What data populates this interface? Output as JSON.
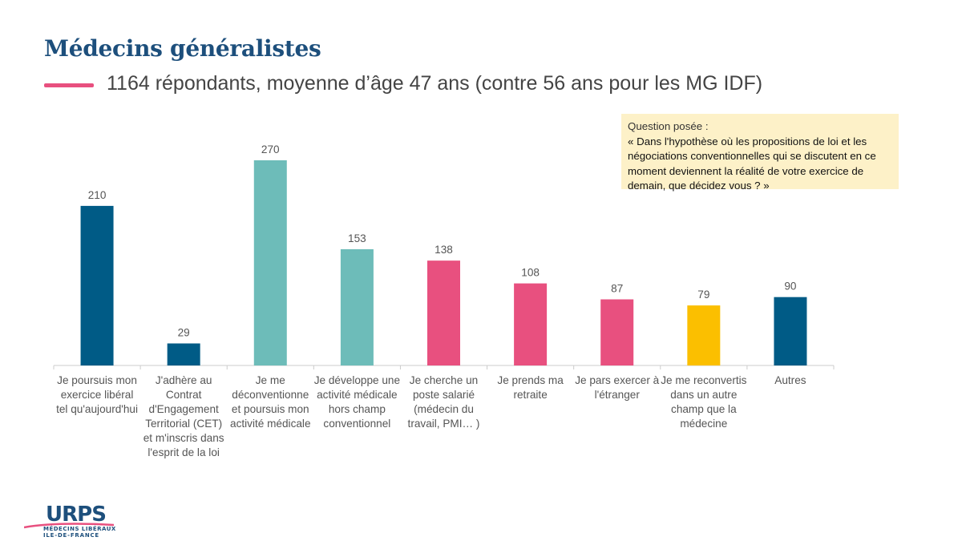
{
  "header": {
    "title": "Médecins généralistes",
    "subtitle": "1164 répondants, moyenne d’âge 47 ans (contre 56 ans pour les MG IDF)"
  },
  "question": {
    "label": "Question posée :",
    "text": "« Dans l'hypothèse où les propositions de loi et les négociations conventionnelles qui se discutent en ce moment deviennent la réalité de votre exercice de demain, que décidez vous ? »"
  },
  "logo": {
    "name": "URPS",
    "line1": "MÉDECINS LIBÉRAUX",
    "line2": "ILE-DE-FRANCE"
  },
  "colors": {
    "dark_blue": "#005b86",
    "teal": "#6dbcb9",
    "pink": "#e8507f",
    "yellow": "#fbbf00",
    "title": "#1d4f7c",
    "question_bg": "#fdf1c8"
  },
  "chart_data": {
    "type": "bar",
    "title": "",
    "xlabel": "",
    "ylabel": "",
    "ylim": [
      0,
      270
    ],
    "grid": false,
    "categories": [
      "Je poursuis mon exercice libéral tel qu'aujourd'hui",
      "J'adhère au Contrat d'Engagement Territorial (CET) et m'inscris dans l'esprit de la loi",
      "Je me déconventionne et poursuis mon activité médicale",
      "Je développe une activité médicale hors champ conventionnel",
      "Je cherche un poste salarié (médecin du travail, PMI… )",
      "Je prends ma retraite",
      "Je pars exercer à l'étranger",
      "Je me reconvertis dans un autre champ que la médecine",
      "Autres"
    ],
    "values": [
      210,
      29,
      270,
      153,
      138,
      108,
      87,
      79,
      90
    ],
    "bar_colors": [
      "#005b86",
      "#005b86",
      "#6dbcb9",
      "#6dbcb9",
      "#e8507f",
      "#e8507f",
      "#e8507f",
      "#fbbf00",
      "#005b86"
    ]
  }
}
